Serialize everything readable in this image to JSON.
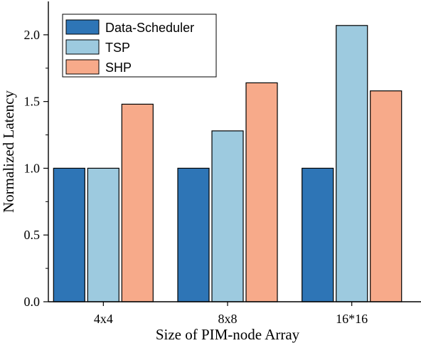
{
  "chart_data": {
    "type": "bar",
    "xlabel": "Size of PIM-node Array",
    "ylabel": "Normalized Latency",
    "categories": [
      "4x4",
      "8x8",
      "16*16"
    ],
    "series": [
      {
        "name": "Data-Scheduler",
        "color": "#2e75b6",
        "values": [
          1.0,
          1.0,
          1.0
        ]
      },
      {
        "name": "TSP",
        "color": "#9dcadf",
        "values": [
          1.0,
          1.28,
          2.07
        ]
      },
      {
        "name": "SHP",
        "color": "#f7aa8a",
        "values": [
          1.48,
          1.64,
          1.58
        ]
      }
    ],
    "ylim": [
      0,
      2.25
    ],
    "yticks": [
      "0.0",
      "0.5",
      "1.0",
      "1.5",
      "2.0"
    ],
    "legend_position": "top-left",
    "grid": false
  }
}
